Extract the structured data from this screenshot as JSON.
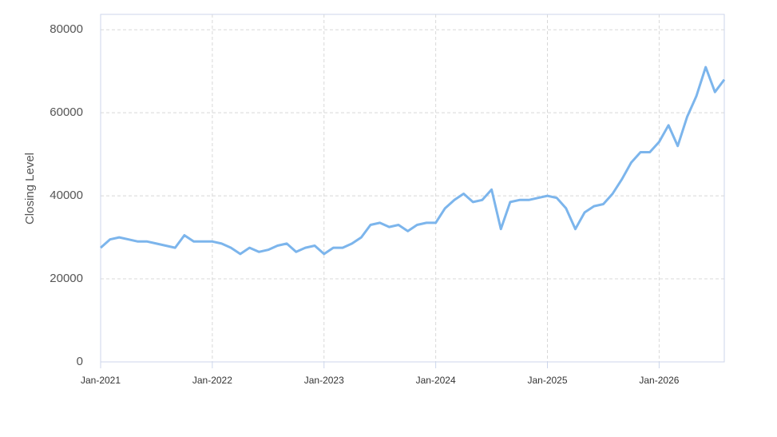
{
  "chart_data": {
    "type": "line",
    "y_label": "Closing Level",
    "x": [
      "2021-01",
      "2021-02",
      "2021-03",
      "2021-04",
      "2021-05",
      "2021-06",
      "2021-07",
      "2021-08",
      "2021-09",
      "2021-10",
      "2021-11",
      "2021-12",
      "2022-01",
      "2022-02",
      "2022-03",
      "2022-04",
      "2022-05",
      "2022-06",
      "2022-07",
      "2022-08",
      "2022-09",
      "2022-10",
      "2022-11",
      "2022-12",
      "2023-01",
      "2023-02",
      "2023-03",
      "2023-04",
      "2023-05",
      "2023-06",
      "2023-07",
      "2023-08",
      "2023-09",
      "2023-10",
      "2023-11",
      "2023-12",
      "2024-01",
      "2024-02",
      "2024-03",
      "2024-04",
      "2024-05",
      "2024-06",
      "2024-07",
      "2024-08",
      "2024-09",
      "2024-10",
      "2024-11",
      "2024-12",
      "2025-01",
      "2025-02",
      "2025-03",
      "2025-04",
      "2025-05",
      "2025-06",
      "2025-07",
      "2025-08",
      "2025-09",
      "2025-10",
      "2025-11",
      "2025-12",
      "2026-01",
      "2026-02",
      "2026-03",
      "2026-04",
      "2026-05",
      "2026-06",
      "2026-07",
      "2026-08"
    ],
    "series": [
      {
        "name": "Closing Level",
        "color": "#7cb5ec",
        "values": [
          27500,
          29500,
          30000,
          29500,
          29000,
          29000,
          28500,
          28000,
          27500,
          30500,
          29000,
          29000,
          29000,
          28500,
          27500,
          26000,
          27500,
          26500,
          27000,
          28000,
          28500,
          26500,
          27500,
          28000,
          26000,
          27500,
          27500,
          28500,
          30000,
          33000,
          33500,
          32500,
          33000,
          31500,
          33000,
          33500,
          33500,
          37000,
          39000,
          40500,
          38500,
          39000,
          41500,
          32000,
          38500,
          39000,
          39000,
          39500,
          40000,
          39500,
          37000,
          32000,
          36000,
          37500,
          38000,
          40500,
          44000,
          48000,
          50500,
          50500,
          53000,
          57000,
          52000,
          59000,
          64000,
          71000,
          65000,
          68000
        ]
      }
    ],
    "xlim": [
      "2021-01",
      "2026-08"
    ],
    "xticks": [
      {
        "value": "2021-01",
        "label": "Jan-2021"
      },
      {
        "value": "2022-01",
        "label": "Jan-2022"
      },
      {
        "value": "2023-01",
        "label": "Jan-2023"
      },
      {
        "value": "2024-01",
        "label": "Jan-2024"
      },
      {
        "value": "2025-01",
        "label": "Jan-2025"
      },
      {
        "value": "2026-01",
        "label": "Jan-2026"
      }
    ],
    "ylim": [
      0,
      83700
    ],
    "yticks": [
      0,
      20000,
      40000,
      60000,
      80000
    ],
    "grid": true
  }
}
